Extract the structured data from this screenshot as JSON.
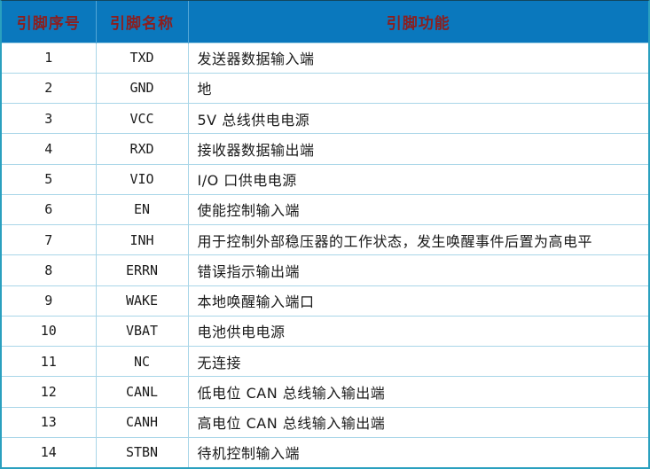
{
  "table": {
    "title_semantic": "CAN transceiver pin description table",
    "headers": [
      "引脚序号",
      "引脚名称",
      "引脚功能"
    ],
    "rows": [
      {
        "no": "1",
        "name": "TXD",
        "func": "发送器数据输入端"
      },
      {
        "no": "2",
        "name": "GND",
        "func": "地"
      },
      {
        "no": "3",
        "name": "VCC",
        "func": "5V 总线供电电源"
      },
      {
        "no": "4",
        "name": "RXD",
        "func": "接收器数据输出端"
      },
      {
        "no": "5",
        "name": "VIO",
        "func": "I/O 口供电电源"
      },
      {
        "no": "6",
        "name": "EN",
        "func": "使能控制输入端"
      },
      {
        "no": "7",
        "name": "INH",
        "func": "用于控制外部稳压器的工作状态，发生唤醒事件后置为高电平"
      },
      {
        "no": "8",
        "name": "ERRN",
        "func": "错误指示输出端"
      },
      {
        "no": "9",
        "name": "WAKE",
        "func": "本地唤醒输入端口"
      },
      {
        "no": "10",
        "name": "VBAT",
        "func": "电池供电电源"
      },
      {
        "no": "11",
        "name": "NC",
        "func": "无连接"
      },
      {
        "no": "12",
        "name": "CANL",
        "func": "低电位 CAN 总线输入输出端"
      },
      {
        "no": "13",
        "name": "CANH",
        "func": "高电位 CAN 总线输入输出端"
      },
      {
        "no": "14",
        "name": "STBN",
        "func": "待机控制输入端"
      }
    ]
  },
  "colors": {
    "header_bg": "#0a78bd",
    "header_text": "#8b1f1f",
    "grid_line": "#a9d6e8",
    "outer_border": "#2aa0bf",
    "row_bg": "#ffffff",
    "body_text": "#1a1a1a"
  }
}
